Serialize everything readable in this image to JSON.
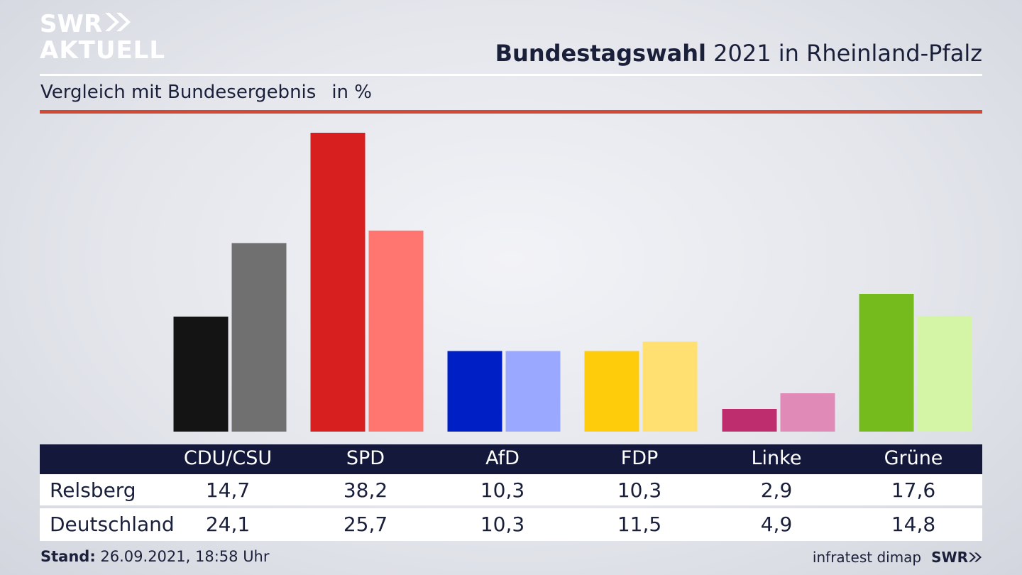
{
  "brand": {
    "line1": "SWR",
    "line2": "AKTUELL",
    "logo_icon": "double-chevron-icon"
  },
  "title": {
    "bold": "Bundestagswahl",
    "rest": "2021 in Rheinland-Pfalz"
  },
  "subtitle": {
    "text": "Vergleich mit Bundesergebnis",
    "unit": "in %"
  },
  "colors": {
    "accent_red": "#d04a35",
    "header_navy": "#14193b",
    "text_navy": "#1a1f3a"
  },
  "chart_data": {
    "type": "bar",
    "categories": [
      "CDU/CSU",
      "SPD",
      "AfD",
      "FDP",
      "Linke",
      "Grüne"
    ],
    "series": [
      {
        "name": "Relsberg",
        "values": [
          14.7,
          38.2,
          10.3,
          10.3,
          2.9,
          17.6
        ],
        "colors": [
          "#141414",
          "#d71f1f",
          "#0020c6",
          "#ffcc0b",
          "#be2e6e",
          "#75bb1e"
        ]
      },
      {
        "name": "Deutschland",
        "values": [
          24.1,
          25.7,
          10.3,
          11.5,
          4.9,
          14.8
        ],
        "colors": [
          "#717070",
          "#ff7570",
          "#9ba8ff",
          "#ffe070",
          "#e08ab8",
          "#d5f5a6"
        ]
      }
    ],
    "ylim": [
      0,
      38.2
    ]
  },
  "table": {
    "rows": [
      {
        "label": "Relsberg",
        "values": [
          "14,7",
          "38,2",
          "10,3",
          "10,3",
          "2,9",
          "17,6"
        ]
      },
      {
        "label": "Deutschland",
        "values": [
          "24,1",
          "25,7",
          "10,3",
          "11,5",
          "4,9",
          "14,8"
        ]
      }
    ]
  },
  "footer": {
    "stand_label": "Stand:",
    "stand_value": "26.09.2021, 18:58 Uhr",
    "source": "infratest dimap",
    "brand": "SWR"
  }
}
